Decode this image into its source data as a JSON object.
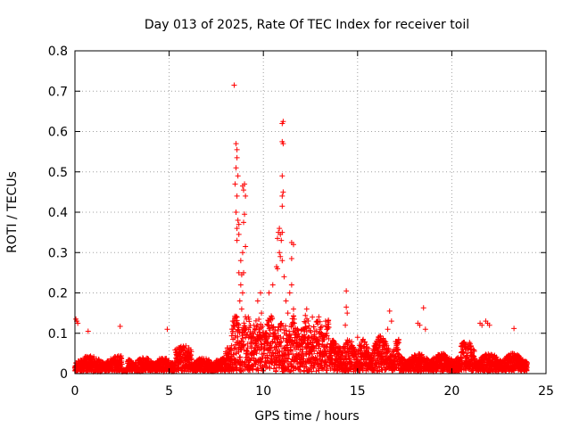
{
  "chart_data": {
    "type": "scatter",
    "title": "Day 013 of 2025, Rate Of TEC Index for receiver toil",
    "xlabel": "GPS time / hours",
    "ylabel": "ROTI / TECUs",
    "xlim": [
      0,
      25
    ],
    "ylim": [
      0,
      0.8
    ],
    "x_ticks": [
      "0",
      "5",
      "10",
      "15",
      "20",
      "25"
    ],
    "y_ticks": [
      "0",
      "0.1",
      "0.2",
      "0.3",
      "0.4",
      "0.5",
      "0.6",
      "0.7",
      "0.8"
    ],
    "grid": true,
    "marker": "+",
    "color": "#ff0000",
    "series": [
      {
        "points": [
          [
            0.05,
            0.135
          ],
          [
            0.1,
            0.13
          ],
          [
            0.15,
            0.125
          ],
          [
            0.7,
            0.105
          ],
          [
            2.4,
            0.117
          ],
          [
            4.9,
            0.11
          ],
          [
            8.45,
            0.715
          ],
          [
            8.55,
            0.57
          ],
          [
            8.6,
            0.555
          ],
          [
            8.6,
            0.535
          ],
          [
            8.55,
            0.51
          ],
          [
            8.65,
            0.49
          ],
          [
            8.5,
            0.47
          ],
          [
            8.6,
            0.44
          ],
          [
            8.9,
            0.465
          ],
          [
            9.0,
            0.47
          ],
          [
            8.95,
            0.455
          ],
          [
            9.05,
            0.44
          ],
          [
            8.55,
            0.4
          ],
          [
            8.65,
            0.38
          ],
          [
            8.7,
            0.37
          ],
          [
            8.6,
            0.36
          ],
          [
            8.7,
            0.345
          ],
          [
            8.6,
            0.33
          ],
          [
            9.0,
            0.395
          ],
          [
            8.95,
            0.375
          ],
          [
            9.05,
            0.315
          ],
          [
            8.9,
            0.3
          ],
          [
            8.8,
            0.28
          ],
          [
            8.7,
            0.25
          ],
          [
            8.85,
            0.245
          ],
          [
            8.95,
            0.25
          ],
          [
            8.8,
            0.22
          ],
          [
            8.9,
            0.2
          ],
          [
            8.75,
            0.18
          ],
          [
            8.85,
            0.16
          ],
          [
            8.6,
            0.14
          ],
          [
            8.4,
            0.12
          ],
          [
            9.2,
            0.14
          ],
          [
            9.5,
            0.12
          ],
          [
            9.7,
            0.18
          ],
          [
            9.85,
            0.2
          ],
          [
            9.9,
            0.15
          ],
          [
            10.3,
            0.2
          ],
          [
            10.5,
            0.22
          ],
          [
            10.7,
            0.265
          ],
          [
            10.75,
            0.335
          ],
          [
            10.8,
            0.35
          ],
          [
            10.85,
            0.36
          ],
          [
            10.9,
            0.345
          ],
          [
            11.0,
            0.35
          ],
          [
            10.95,
            0.33
          ],
          [
            10.85,
            0.3
          ],
          [
            10.9,
            0.29
          ],
          [
            11.0,
            0.28
          ],
          [
            10.75,
            0.26
          ],
          [
            11.1,
            0.24
          ],
          [
            11.05,
            0.625
          ],
          [
            11.0,
            0.62
          ],
          [
            11.0,
            0.575
          ],
          [
            11.05,
            0.57
          ],
          [
            11.0,
            0.49
          ],
          [
            11.05,
            0.45
          ],
          [
            11.0,
            0.44
          ],
          [
            11.0,
            0.415
          ],
          [
            11.5,
            0.325
          ],
          [
            11.6,
            0.32
          ],
          [
            11.5,
            0.285
          ],
          [
            11.5,
            0.22
          ],
          [
            11.4,
            0.2
          ],
          [
            11.2,
            0.18
          ],
          [
            11.6,
            0.16
          ],
          [
            11.3,
            0.15
          ],
          [
            12.3,
            0.16
          ],
          [
            12.6,
            0.14
          ],
          [
            13.0,
            0.11
          ],
          [
            13.3,
            0.13
          ],
          [
            14.4,
            0.205
          ],
          [
            14.4,
            0.165
          ],
          [
            14.45,
            0.15
          ],
          [
            14.35,
            0.12
          ],
          [
            15.0,
            0.09
          ],
          [
            16.0,
            0.08
          ],
          [
            16.7,
            0.155
          ],
          [
            16.8,
            0.13
          ],
          [
            16.6,
            0.11
          ],
          [
            18.2,
            0.125
          ],
          [
            18.3,
            0.12
          ],
          [
            18.5,
            0.163
          ],
          [
            18.6,
            0.11
          ],
          [
            21.5,
            0.125
          ],
          [
            21.6,
            0.12
          ],
          [
            21.8,
            0.13
          ],
          [
            21.9,
            0.125
          ],
          [
            22.0,
            0.12
          ],
          [
            23.3,
            0.112
          ]
        ]
      }
    ]
  }
}
